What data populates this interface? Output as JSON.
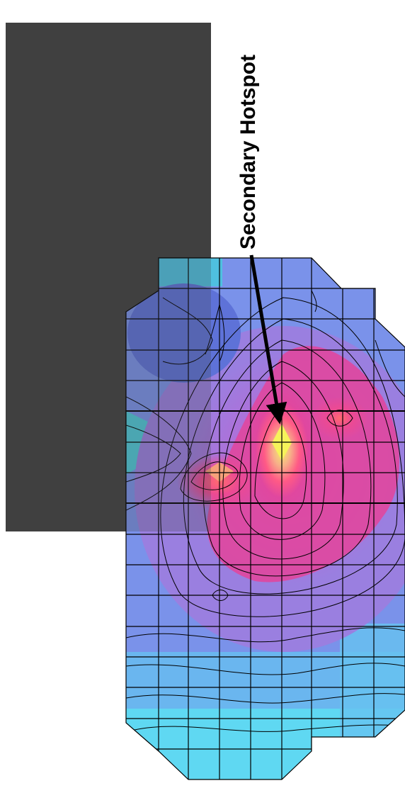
{
  "annotation": {
    "text": "Secondary Hotspot",
    "color": "#000000"
  },
  "colors": {
    "panel": "#404040",
    "cold": "#5fd8f2",
    "cool": "#7a92ea",
    "mid": "#9a7fe0",
    "warm": "#e0479f",
    "hot": "#ff5a86",
    "peak": "#f4f06a",
    "grid": "#000000"
  },
  "icons": [
    "arrow-icon"
  ]
}
